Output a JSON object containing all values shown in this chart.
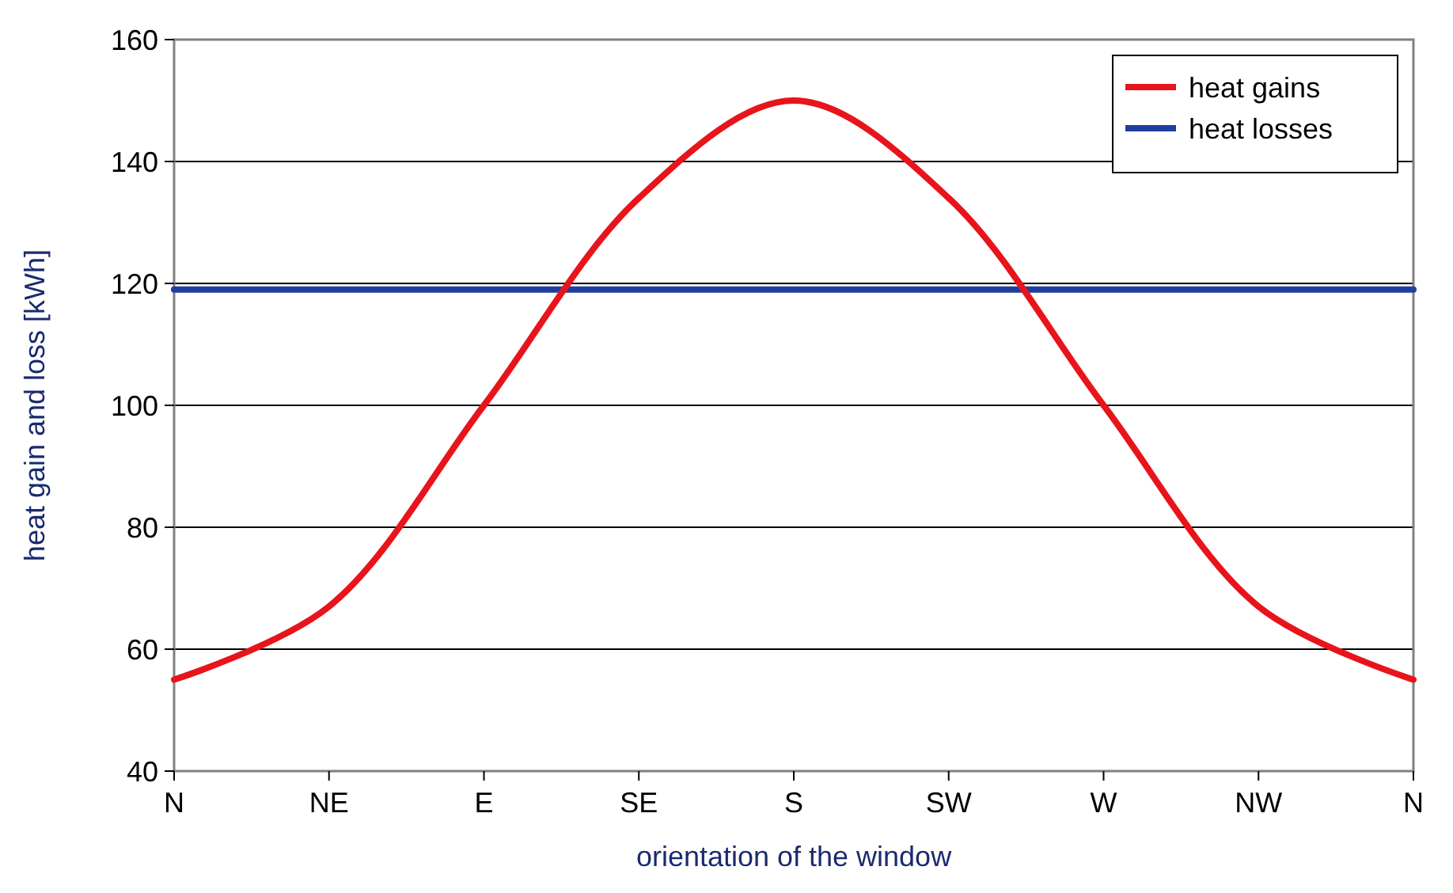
{
  "chart_data": {
    "type": "line",
    "xlabel": "orientation of the window",
    "ylabel": "heat gain and loss [kWh]",
    "categories": [
      "N",
      "NE",
      "E",
      "SE",
      "S",
      "SW",
      "W",
      "NW",
      "N"
    ],
    "series": [
      {
        "name": "heat gains",
        "color": "#e8141b",
        "values": [
          55,
          67,
          100,
          134,
          150,
          134,
          100,
          67,
          55
        ]
      },
      {
        "name": "heat losses",
        "color": "#1f3fa0",
        "values": [
          119,
          119,
          119,
          119,
          119,
          119,
          119,
          119,
          119
        ]
      }
    ],
    "ylim": [
      40,
      160
    ],
    "yticks": [
      40,
      60,
      80,
      100,
      120,
      140,
      160
    ],
    "grid": "y",
    "legend": "top right",
    "marker": "none",
    "line_style": "solid"
  }
}
